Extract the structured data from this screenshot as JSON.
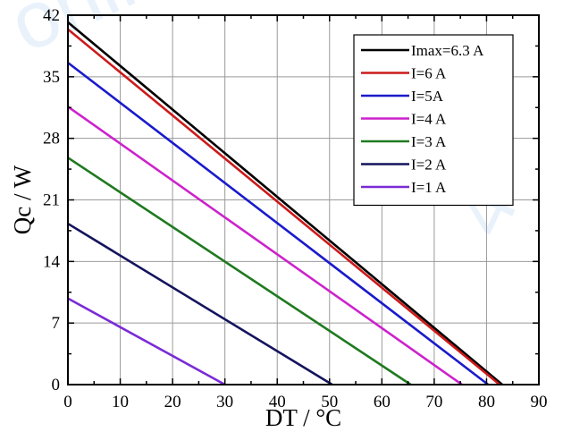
{
  "chart_data": {
    "type": "line",
    "xlabel": "DT / °C",
    "ylabel": "Qc / W",
    "xlim": [
      0,
      90
    ],
    "ylim": [
      0,
      42
    ],
    "xticks": [
      0,
      10,
      20,
      30,
      40,
      50,
      60,
      70,
      80,
      90
    ],
    "yticks": [
      0,
      7,
      14,
      21,
      28,
      35,
      42
    ],
    "grid": true,
    "legend_position": "top-right",
    "series": [
      {
        "name": "Imax=6.3 A",
        "color": "#000000",
        "x": [
          0,
          83
        ],
        "y": [
          41.2,
          0
        ]
      },
      {
        "name": "I=6 A",
        "color": "#cc1a1a",
        "x": [
          0,
          82.5
        ],
        "y": [
          40.4,
          0
        ]
      },
      {
        "name": "I=5A",
        "color": "#1a1acc",
        "x": [
          0,
          80.3
        ],
        "y": [
          36.6,
          0
        ]
      },
      {
        "name": "I=4 A",
        "color": "#cc22cc",
        "x": [
          0,
          75.3
        ],
        "y": [
          31.6,
          0
        ]
      },
      {
        "name": "I=3 A",
        "color": "#1f7a1f",
        "x": [
          0,
          65.5
        ],
        "y": [
          25.8,
          0
        ]
      },
      {
        "name": "I=2 A",
        "color": "#14145e",
        "x": [
          0,
          50.5
        ],
        "y": [
          18.3,
          0
        ]
      },
      {
        "name": "I=1 A",
        "color": "#7a2bd6",
        "x": [
          0,
          30
        ],
        "y": [
          9.8,
          0
        ]
      }
    ]
  }
}
